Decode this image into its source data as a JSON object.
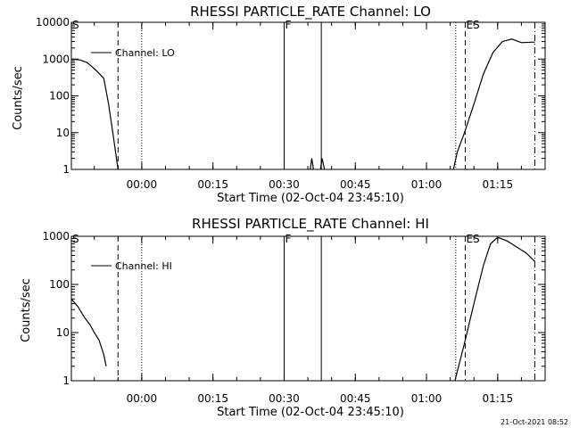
{
  "colors": {
    "background": "#ffffff",
    "foreground": "#000000"
  },
  "chart_data": [
    {
      "type": "line",
      "yscale": "log",
      "title": "RHESSI PARTICLE_RATE Channel: LO",
      "xlabel": "Start Time (02-Oct-04 23:45:10)",
      "ylabel": "Counts/sec",
      "xlim": [
        "23:45:10",
        "01:25:00"
      ],
      "ylim": [
        1,
        10000
      ],
      "x_tick_labels": [
        "00:00",
        "00:15",
        "00:30",
        "00:45",
        "01:00",
        "01:15"
      ],
      "y_tick_labels": [
        "1",
        "10",
        "100",
        "1000",
        "10000"
      ],
      "legend": {
        "label": "Channel: LO",
        "position": "top-left"
      },
      "markers": [
        {
          "label": "S",
          "time": "23:45:10",
          "style": "solid"
        },
        {
          "label": "",
          "time": "23:55:00",
          "style": "dashed"
        },
        {
          "label": "",
          "time": "00:00:00",
          "style": "dotted"
        },
        {
          "label": "F",
          "time": "00:30:00",
          "style": "solid"
        },
        {
          "label": "",
          "time": "00:37:50",
          "style": "solid"
        },
        {
          "label": "",
          "time": "01:06:10",
          "style": "dotted"
        },
        {
          "label": "ES",
          "time": "01:08:10",
          "style": "dashed"
        },
        {
          "label": "",
          "time": "01:22:50",
          "style": "dashdot"
        }
      ],
      "series": [
        {
          "name": "Channel: LO",
          "segments": [
            [
              [
                "23:45:10",
                1000
              ],
              [
                "23:47:00",
                950
              ],
              [
                "23:48:30",
                800
              ],
              [
                "23:50:00",
                550
              ],
              [
                "23:51:30",
                350
              ],
              [
                "23:52:00",
                300
              ],
              [
                "23:53:00",
                60
              ],
              [
                "23:54:00",
                8
              ],
              [
                "23:55:00",
                1
              ]
            ],
            [
              [
                "00:35:30",
                1
              ],
              [
                "00:35:50",
                2
              ],
              [
                "00:36:10",
                1
              ]
            ],
            [
              [
                "00:37:40",
                1
              ],
              [
                "00:38:00",
                2
              ],
              [
                "00:38:30",
                1
              ]
            ],
            [
              [
                "01:05:40",
                1
              ],
              [
                "01:06:30",
                3
              ],
              [
                "01:08:00",
                10
              ],
              [
                "01:10:00",
                60
              ],
              [
                "01:12:00",
                400
              ],
              [
                "01:14:00",
                1500
              ],
              [
                "01:16:00",
                3000
              ],
              [
                "01:18:00",
                3500
              ],
              [
                "01:20:00",
                2800
              ],
              [
                "01:22:50",
                2900
              ]
            ]
          ]
        }
      ]
    },
    {
      "type": "line",
      "yscale": "log",
      "title": "RHESSI PARTICLE_RATE Channel: HI",
      "xlabel": "Start Time (02-Oct-04 23:45:10)",
      "ylabel": "Counts/sec",
      "xlim": [
        "23:45:10",
        "01:25:00"
      ],
      "ylim": [
        1,
        1000
      ],
      "x_tick_labels": [
        "00:00",
        "00:15",
        "00:30",
        "00:45",
        "01:00",
        "01:15"
      ],
      "y_tick_labels": [
        "1",
        "10",
        "100",
        "1000"
      ],
      "legend": {
        "label": "Channel: HI",
        "position": "top-left"
      },
      "markers": [
        {
          "label": "S",
          "time": "23:45:10",
          "style": "solid"
        },
        {
          "label": "",
          "time": "23:55:00",
          "style": "dashed"
        },
        {
          "label": "",
          "time": "00:00:00",
          "style": "dotted"
        },
        {
          "label": "F",
          "time": "00:30:00",
          "style": "solid"
        },
        {
          "label": "",
          "time": "00:37:50",
          "style": "solid"
        },
        {
          "label": "",
          "time": "01:06:10",
          "style": "dotted"
        },
        {
          "label": "ES",
          "time": "01:08:10",
          "style": "dashed"
        },
        {
          "label": "",
          "time": "01:22:50",
          "style": "dashdot"
        }
      ],
      "series": [
        {
          "name": "Channel: HI",
          "segments": [
            [
              [
                "23:45:10",
                50
              ],
              [
                "23:46:30",
                35
              ],
              [
                "23:48:00",
                20
              ],
              [
                "23:49:00",
                15
              ],
              [
                "23:50:00",
                10
              ],
              [
                "23:51:00",
                7
              ],
              [
                "23:52:00",
                3.5
              ],
              [
                "23:52:30",
                2
              ]
            ],
            [
              [
                "01:06:00",
                1
              ],
              [
                "01:08:00",
                6
              ],
              [
                "01:10:00",
                40
              ],
              [
                "01:12:00",
                250
              ],
              [
                "01:13:30",
                700
              ],
              [
                "01:15:00",
                950
              ],
              [
                "01:17:00",
                800
              ],
              [
                "01:19:00",
                600
              ],
              [
                "01:21:00",
                450
              ],
              [
                "01:22:50",
                300
              ]
            ]
          ]
        }
      ]
    }
  ],
  "footer": {
    "timestamp": "21-Oct-2021 08:52"
  }
}
